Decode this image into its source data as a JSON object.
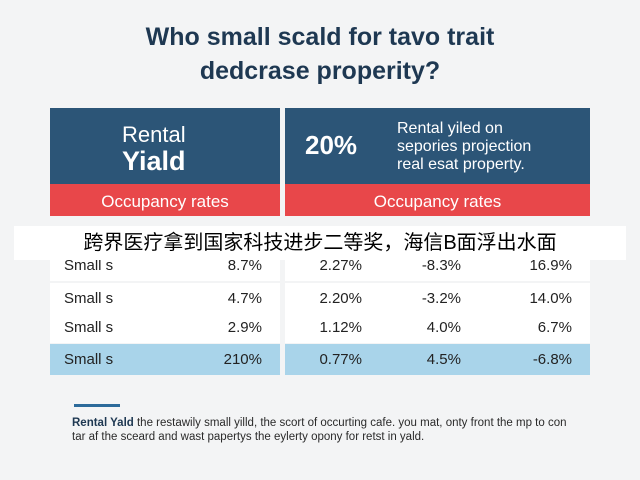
{
  "title": {
    "line1": "Who small scald for tavo trait",
    "line2": "dedcrase properity?"
  },
  "left_header": {
    "line1": "Rental",
    "line2": "Yiald"
  },
  "right_header": {
    "percent": "20%",
    "desc1": "Rental yiled on",
    "desc2": "sepories projection",
    "desc3": "real esat property."
  },
  "band": {
    "left": "Occupancy rates",
    "right": "Occupancy rates"
  },
  "overlay_caption": "跨界医疗拿到国家科技进步二等奖，海信B面浮出水面",
  "chart_data": {
    "type": "table",
    "title": "Who small scald for tavo trait dedcrase properity?",
    "columns": [
      "",
      "Rental Yiald",
      "",
      "",
      ""
    ],
    "rows": [
      {
        "label": "Small s",
        "values": [
          "8.7%",
          "2.27%",
          "-8.3%",
          "16.9%"
        ],
        "highlight": false
      },
      {
        "label": "Small s",
        "values": [
          "4.7%",
          "2.20%",
          "-3.2%",
          "14.0%"
        ],
        "highlight": false
      },
      {
        "label": "Small s",
        "values": [
          "2.9%",
          "1.12%",
          "4.0%",
          "6.7%"
        ],
        "highlight": false
      },
      {
        "label": "Small s",
        "values": [
          "210%",
          "0.77%",
          "4.5%",
          "-6.8%"
        ],
        "highlight": true
      }
    ]
  },
  "footnote": {
    "bold": "Rental Yald",
    "text": " the restawily small yilld, the scort of occurting cafe. you mat, onty front the mp to con tar af the sceard and wast papertys the eylerty opony for retst in yald."
  },
  "colors": {
    "header": "#2c5577",
    "band": "#e8474a",
    "row_white": "#ffffff",
    "row_highlight": "#a9d4ea",
    "title": "#1e3852"
  }
}
